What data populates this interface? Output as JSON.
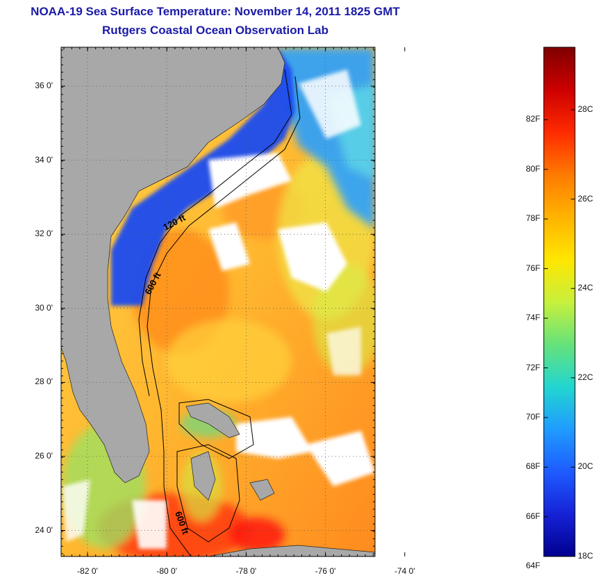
{
  "header": {
    "title": "NOAA-19 Sea Surface Temperature:  November 14, 2011 1825 GMT",
    "subtitle": "Rutgers Coastal Ocean Observation Lab"
  },
  "map": {
    "lat_labels": [
      "36 0'",
      "34 0'",
      "32 0'",
      "30 0'",
      "28 0'",
      "26 0'",
      "24 0'"
    ],
    "lat_values": [
      36,
      34,
      32,
      30,
      28,
      26,
      24
    ],
    "lon_labels": [
      "-82 0'",
      "-80 0'",
      "-78 0'",
      "-76 0'",
      "-74 0'"
    ],
    "lon_values": [
      -82,
      -80,
      -78,
      -76,
      -74
    ],
    "contours": [
      {
        "label": "120 ft",
        "depth_ft": 120
      },
      {
        "label": "600 ft",
        "depth_ft": 600
      },
      {
        "label": "600 ft",
        "depth_ft": 600
      }
    ],
    "colors": {
      "land": "#a8a8a8",
      "cloud": "#ffffff",
      "frame": "#000000"
    }
  },
  "colorbar": {
    "f_labels": [
      "82F",
      "80F",
      "78F",
      "76F",
      "74F",
      "72F",
      "70F",
      "68F",
      "66F",
      "64F"
    ],
    "f_values": [
      82,
      80,
      78,
      76,
      74,
      72,
      70,
      68,
      66,
      64
    ],
    "c_labels": [
      "28C",
      "26C",
      "24C",
      "22C",
      "20C",
      "18C"
    ],
    "c_values": [
      28,
      26,
      24,
      22,
      20,
      18
    ],
    "min_c": 18,
    "max_c": 29.4,
    "gradient": [
      "#7f0000",
      "#cc0000",
      "#ff2a00",
      "#ff7a00",
      "#ffb300",
      "#ffe600",
      "#c8f03c",
      "#66e27a",
      "#22d6d0",
      "#1f9cff",
      "#1e5cff",
      "#1622d6",
      "#00008f"
    ]
  }
}
